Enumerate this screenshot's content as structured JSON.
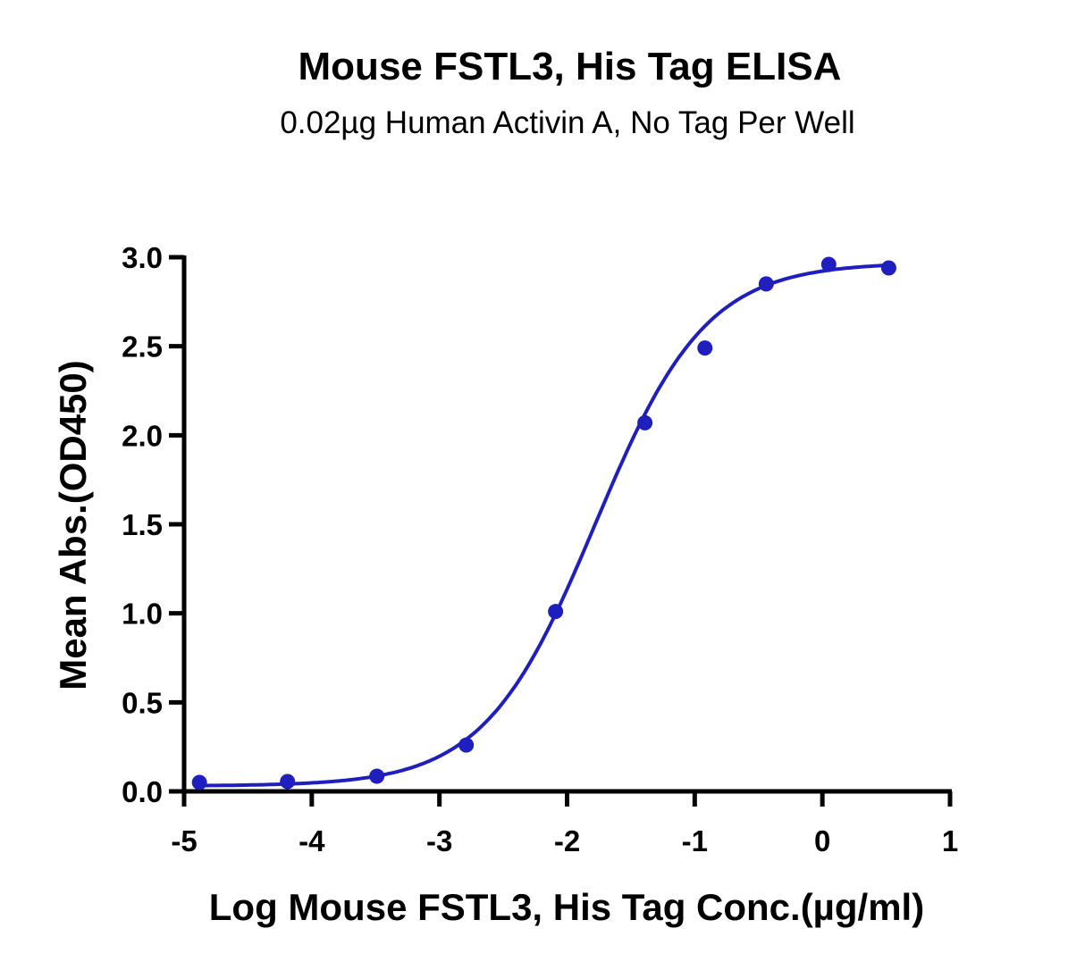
{
  "chart_data": {
    "type": "scatter",
    "title": "Mouse FSTL3, His Tag ELISA",
    "subtitle": "0.02µg Human Activin A, No Tag Per Well",
    "xlabel": "Log Mouse FSTL3, His Tag Conc.(µg/ml)",
    "ylabel": "Mean Abs.(OD450)",
    "xlim": [
      -5,
      1
    ],
    "ylim": [
      0,
      3.0
    ],
    "xticks": [
      "-5",
      "-4",
      "-3",
      "-2",
      "-1",
      "0",
      "1"
    ],
    "yticks": [
      "0.0",
      "0.5",
      "1.0",
      "1.5",
      "2.0",
      "2.5",
      "3.0"
    ],
    "series": [
      {
        "x": [
          -4.88,
          -4.19,
          -3.49,
          -2.79,
          -2.09,
          -1.39,
          -0.92,
          -0.44,
          0.05,
          0.52
        ],
        "y": [
          0.05,
          0.055,
          0.085,
          0.26,
          1.01,
          2.07,
          2.49,
          2.85,
          2.96,
          2.94
        ],
        "color": "#1f1fbf",
        "fit": "four-parameter logistic",
        "fit_params": {
          "bottom": 0.03,
          "top": 2.97,
          "logEC50": -1.78,
          "hill": 1.0
        }
      }
    ],
    "grid": false,
    "legend": "none"
  }
}
